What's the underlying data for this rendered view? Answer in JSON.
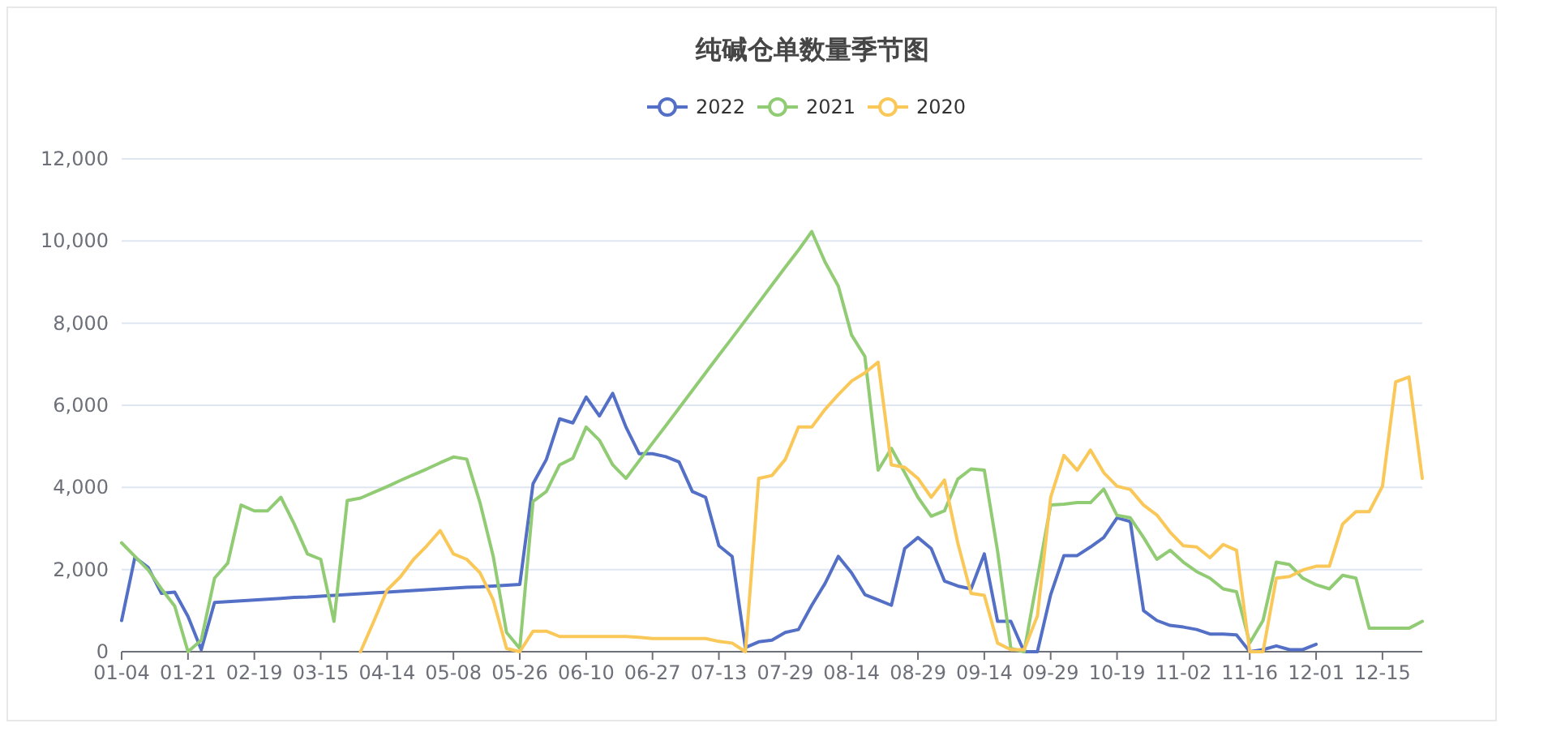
{
  "chart_data": {
    "type": "line",
    "title": "纯碱仓单数量季节图",
    "legend": "top",
    "grid": "y",
    "categories": [
      "01-04",
      null,
      null,
      null,
      null,
      "01-21",
      null,
      null,
      null,
      null,
      "02-19",
      null,
      null,
      null,
      null,
      "03-15",
      null,
      null,
      null,
      null,
      "04-14",
      null,
      null,
      null,
      null,
      "05-08",
      null,
      null,
      null,
      null,
      "05-26",
      null,
      null,
      null,
      null,
      "06-10",
      null,
      null,
      null,
      null,
      "06-27",
      null,
      null,
      null,
      null,
      "07-13",
      null,
      null,
      null,
      null,
      "07-29",
      null,
      null,
      null,
      null,
      "08-14",
      null,
      null,
      null,
      null,
      "08-29",
      null,
      null,
      null,
      null,
      "09-14",
      null,
      null,
      null,
      null,
      "09-29",
      null,
      null,
      null,
      null,
      "10-19",
      null,
      null,
      null,
      null,
      "11-02",
      null,
      null,
      null,
      null,
      "11-16",
      null,
      null,
      null,
      null,
      "12-01",
      null,
      null,
      null,
      null,
      "12-15",
      null,
      null,
      null
    ],
    "ylim": [
      0,
      12000
    ],
    "yticks": [
      {
        "value": 0,
        "label": "0"
      },
      {
        "value": 2000,
        "label": "2,000"
      },
      {
        "value": 4000,
        "label": "4,000"
      },
      {
        "value": 6000,
        "label": "6,000"
      },
      {
        "value": 8000,
        "label": "8,000"
      },
      {
        "value": 10000,
        "label": "10,000"
      },
      {
        "value": 12000,
        "label": "12,000"
      }
    ],
    "series": [
      {
        "name": "2022",
        "color": "#5470c6",
        "values": [
          760,
          2300,
          2050,
          1420,
          1450,
          860,
          50,
          1200,
          1220,
          1240,
          1260,
          1280,
          1300,
          1320,
          1330,
          1350,
          1370,
          1390,
          1410,
          1430,
          1450,
          1470,
          1490,
          1510,
          1530,
          1550,
          1570,
          1580,
          1600,
          1620,
          1640,
          4090,
          4680,
          5670,
          5570,
          6200,
          5740,
          6290,
          5470,
          4820,
          4820,
          4750,
          4620,
          3900,
          3760,
          2580,
          2320,
          100,
          240,
          280,
          470,
          540,
          1130,
          1660,
          2320,
          1920,
          1390,
          1260,
          1130,
          2510,
          2780,
          2510,
          1720,
          1600,
          1530,
          2380,
          740,
          740,
          0,
          0,
          1390,
          2340,
          2340,
          2550,
          2780,
          3260,
          3170,
          1000,
          760,
          640,
          600,
          540,
          430,
          430,
          410,
          0,
          50,
          140,
          50,
          50,
          180,
          null,
          null,
          null,
          null,
          null,
          null,
          null,
          null
        ]
      },
      {
        "name": "2021",
        "color": "#91cc75",
        "values": [
          2650,
          2320,
          1990,
          1530,
          1110,
          0,
          280,
          1790,
          2160,
          3570,
          3430,
          3430,
          3760,
          3110,
          2380,
          2250,
          740,
          3680,
          3740,
          3880,
          4020,
          4170,
          4310,
          4450,
          4600,
          4740,
          4690,
          3630,
          2320,
          470,
          80,
          3660,
          3900,
          4550,
          4710,
          5470,
          5150,
          4550,
          4220,
          4650,
          5080,
          5500,
          5930,
          6360,
          6790,
          7220,
          7640,
          8070,
          8500,
          8930,
          9360,
          9780,
          10230,
          9490,
          8900,
          7710,
          7190,
          4420,
          4950,
          4360,
          3760,
          3300,
          3430,
          4200,
          4450,
          4420,
          2450,
          80,
          0,
          1790,
          3570,
          3590,
          3630,
          3630,
          3960,
          3320,
          3260,
          2780,
          2250,
          2470,
          2180,
          1950,
          1790,
          1530,
          1460,
          210,
          760,
          2180,
          2120,
          1790,
          1630,
          1530,
          1860,
          1790,
          570,
          570,
          570,
          570,
          740
        ]
      },
      {
        "name": "2020",
        "color": "#fac858",
        "values": [
          null,
          null,
          null,
          null,
          null,
          null,
          null,
          null,
          null,
          null,
          null,
          null,
          null,
          null,
          null,
          null,
          null,
          null,
          0,
          740,
          1500,
          1820,
          2250,
          2580,
          2950,
          2380,
          2250,
          1920,
          1260,
          80,
          0,
          500,
          500,
          370,
          370,
          370,
          370,
          370,
          370,
          350,
          320,
          320,
          320,
          320,
          320,
          250,
          210,
          0,
          4220,
          4290,
          4680,
          5470,
          5470,
          5900,
          6260,
          6590,
          6790,
          7050,
          4550,
          4490,
          4220,
          3760,
          4180,
          2650,
          1420,
          1370,
          210,
          50,
          50,
          870,
          3760,
          4780,
          4420,
          4910,
          4360,
          4030,
          3950,
          3570,
          3330,
          2910,
          2580,
          2550,
          2290,
          2610,
          2470,
          0,
          0,
          1790,
          1830,
          1990,
          2080,
          2080,
          3110,
          3410,
          3410,
          4030,
          6570,
          6690,
          4220
        ]
      }
    ]
  }
}
